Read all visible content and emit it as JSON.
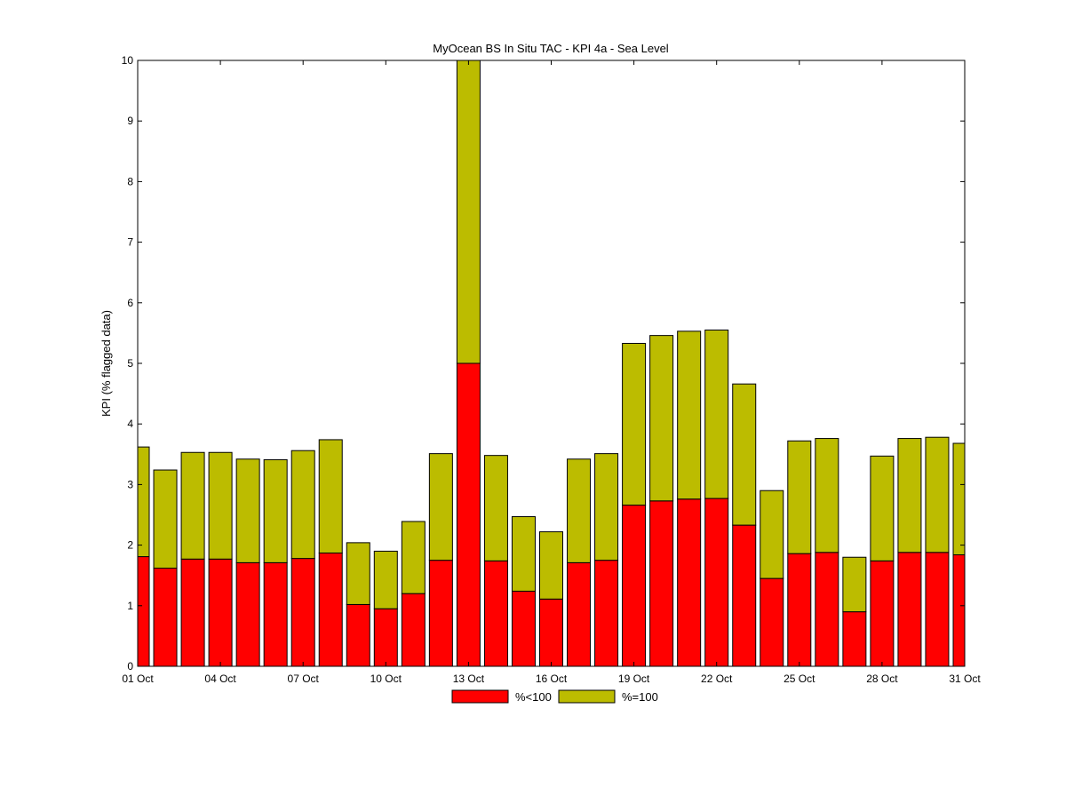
{
  "chart_data": {
    "type": "bar",
    "stacked": true,
    "title": "MyOcean  BS In Situ TAC - KPI 4a - Sea Level",
    "xlabel": "",
    "ylabel": "KPI (% flagged data)",
    "ylim": [
      0,
      10
    ],
    "xlim": [
      1,
      31
    ],
    "yticks": [
      "0",
      "1",
      "2",
      "3",
      "4",
      "5",
      "6",
      "7",
      "8",
      "9",
      "10"
    ],
    "xticks": [
      {
        "day": 1,
        "label": "01 Oct"
      },
      {
        "day": 4,
        "label": "04 Oct"
      },
      {
        "day": 7,
        "label": "07 Oct"
      },
      {
        "day": 10,
        "label": "10 Oct"
      },
      {
        "day": 13,
        "label": "13 Oct"
      },
      {
        "day": 16,
        "label": "16 Oct"
      },
      {
        "day": 19,
        "label": "19 Oct"
      },
      {
        "day": 22,
        "label": "22 Oct"
      },
      {
        "day": 25,
        "label": "25 Oct"
      },
      {
        "day": 28,
        "label": "28 Oct"
      },
      {
        "day": 31,
        "label": "31 Oct"
      }
    ],
    "days": [
      1,
      2,
      3,
      4,
      5,
      6,
      7,
      8,
      9,
      10,
      11,
      12,
      13,
      14,
      15,
      16,
      17,
      18,
      19,
      20,
      21,
      22,
      23,
      24,
      25,
      26,
      27,
      28,
      29,
      30,
      31
    ],
    "grid": false,
    "legend_position": "bottom-center",
    "series": [
      {
        "name": "%<100",
        "color": "#ff0000",
        "values": [
          1.81,
          1.62,
          1.77,
          1.77,
          1.71,
          1.71,
          1.78,
          1.87,
          1.02,
          0.95,
          1.2,
          1.75,
          5.0,
          1.74,
          1.24,
          1.11,
          1.71,
          1.75,
          2.66,
          2.73,
          2.76,
          2.77,
          2.33,
          1.45,
          1.86,
          1.88,
          0.9,
          1.74,
          1.88,
          1.88,
          1.84
        ]
      },
      {
        "name": "%=100",
        "color": "#bcbc00",
        "values": [
          1.81,
          1.62,
          1.76,
          1.76,
          1.71,
          1.7,
          1.78,
          1.87,
          1.02,
          0.95,
          1.19,
          1.76,
          5.0,
          1.74,
          1.23,
          1.11,
          1.71,
          1.76,
          2.67,
          2.73,
          2.77,
          2.78,
          2.33,
          1.45,
          1.86,
          1.88,
          0.9,
          1.73,
          1.88,
          1.9,
          1.84
        ]
      }
    ]
  }
}
